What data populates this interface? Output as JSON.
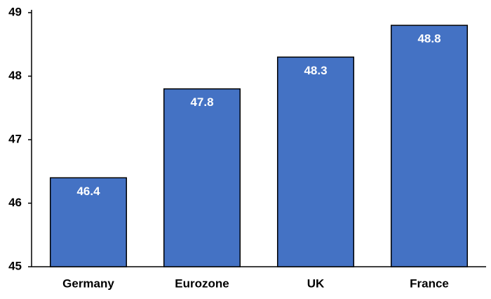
{
  "chart_data": {
    "type": "bar",
    "categories": [
      "Germany",
      "Eurozone",
      "UK",
      "France"
    ],
    "values": [
      46.4,
      47.8,
      48.3,
      48.8
    ],
    "color": "#4472c4",
    "ylim": [
      45,
      49
    ],
    "yticks": [
      45,
      46,
      47,
      48,
      49
    ],
    "grid": false
  }
}
